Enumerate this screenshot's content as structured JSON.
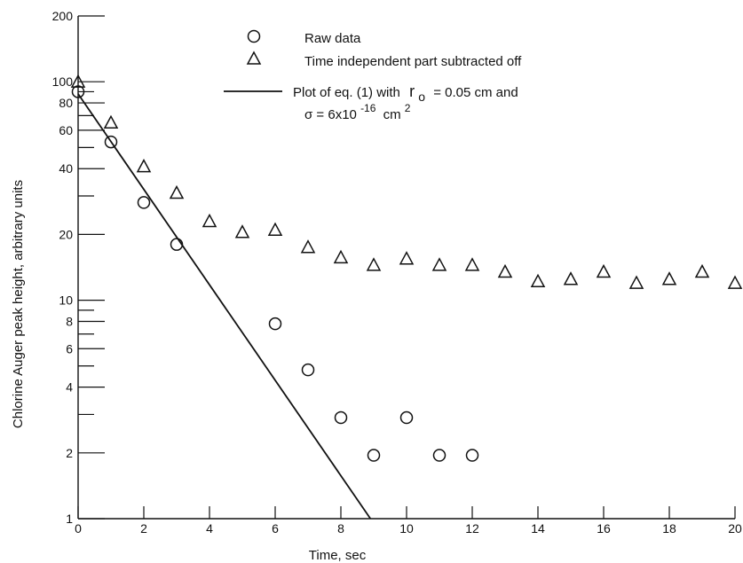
{
  "chart_data": {
    "type": "scatter",
    "title": "",
    "xlabel": "Time, sec",
    "ylabel": "Chlorine Auger peak height, arbitrary units",
    "xlim": [
      0,
      20
    ],
    "ylim": [
      1,
      200
    ],
    "yscale": "log",
    "x_ticks": [
      "0",
      "2",
      "4",
      "6",
      "8",
      "10",
      "12",
      "14",
      "16",
      "18",
      "20"
    ],
    "y_tick_labels": [
      "1",
      "2",
      "4",
      "6",
      "8",
      "10",
      "20",
      "40",
      "60",
      "80",
      "100",
      "200"
    ],
    "y_minor_ticks": [
      3,
      5,
      7,
      9,
      30,
      50,
      70,
      90
    ],
    "grid": false,
    "legend_position": "top-center",
    "series": [
      {
        "name": "Raw data",
        "marker": "circle",
        "x": [
          0,
          1,
          2,
          3,
          6,
          7,
          8,
          9,
          10,
          11,
          12
        ],
        "y": [
          90,
          53,
          28,
          18,
          7.8,
          4.8,
          2.9,
          1.95,
          2.9,
          1.95,
          1.95
        ]
      },
      {
        "name": "Time independent part subtracted off",
        "marker": "triangle",
        "x": [
          0,
          1,
          2,
          3,
          4,
          5,
          6,
          7,
          8,
          9,
          10,
          11,
          12,
          13,
          14,
          15,
          16,
          17,
          18,
          19,
          20
        ],
        "y": [
          100,
          65,
          41,
          31,
          23,
          20.5,
          21,
          17.5,
          15.7,
          14.5,
          15.5,
          14.5,
          14.5,
          13.5,
          12.2,
          12.5,
          13.5,
          12,
          12.5,
          13.5,
          12
        ]
      },
      {
        "name": "Plot of eq. (1) with r0 = 0.05 cm and σ = 6x10-16 cm2",
        "marker": "line",
        "x": [
          0,
          8.9
        ],
        "y": [
          88,
          1
        ]
      }
    ],
    "legend": {
      "raw": "Raw data",
      "triangle": "Time independent part subtracted off",
      "line_prefix": "Plot of eq. (1) with",
      "line_r": "r",
      "line_r_sub": "o",
      "line_r_value": "= 0.05 cm and",
      "line_sigma_prefix": "σ = 6x10",
      "line_sigma_exp": "-16",
      "line_sigma_unit": "cm",
      "line_sigma_unit_exp": "2"
    }
  }
}
